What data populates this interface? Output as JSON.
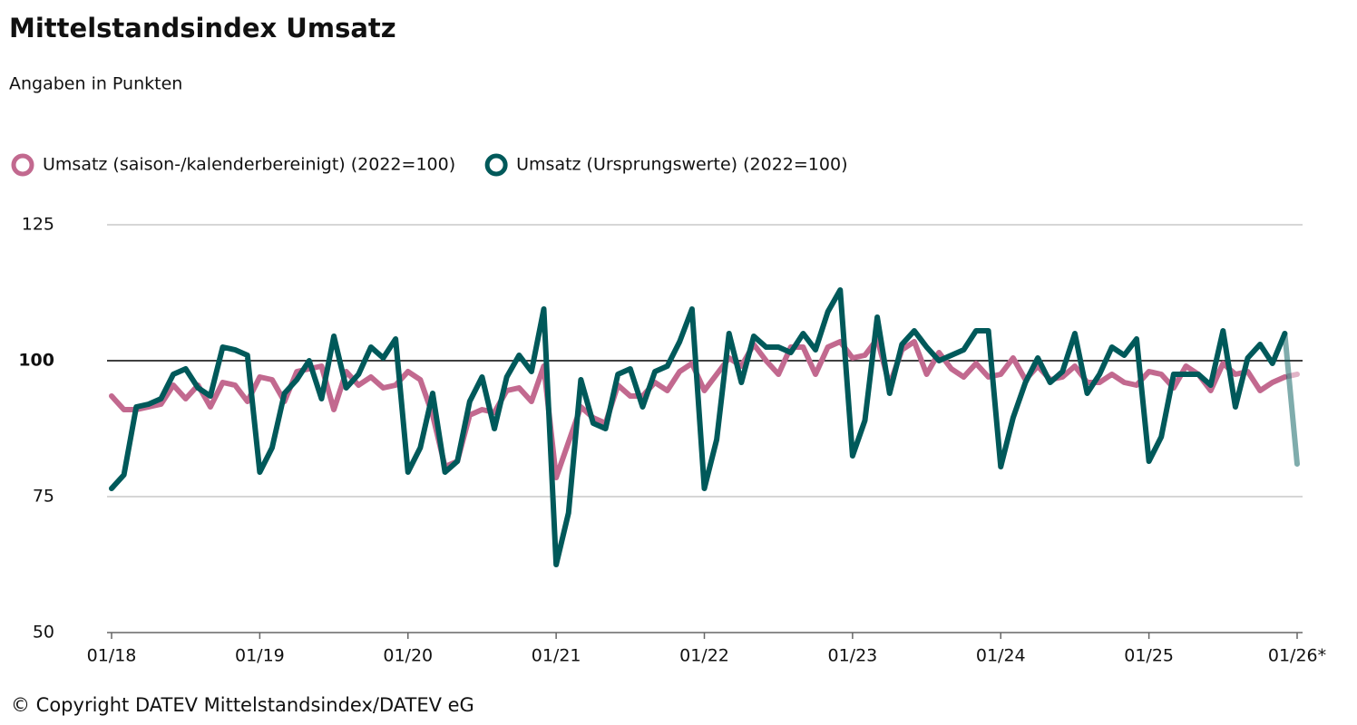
{
  "chart_data": {
    "type": "line",
    "title": "Mittelstandsindex Umsatz",
    "subtitle": "Angaben in Punkten",
    "source": "© Copyright DATEV Mittelstandsindex/DATEV eG",
    "x": [
      "01/18",
      null,
      null,
      null,
      null,
      null,
      null,
      null,
      null,
      null,
      null,
      null,
      "01/19",
      null,
      null,
      null,
      null,
      null,
      null,
      null,
      null,
      null,
      null,
      null,
      "01/20",
      null,
      null,
      null,
      null,
      null,
      null,
      null,
      null,
      null,
      null,
      null,
      "01/21",
      null,
      null,
      null,
      null,
      null,
      null,
      null,
      null,
      null,
      null,
      null,
      "01/22",
      null,
      null,
      null,
      null,
      null,
      null,
      null,
      null,
      null,
      null,
      null,
      "01/23",
      null,
      null,
      null,
      null,
      null,
      null,
      null,
      null,
      null,
      null,
      null,
      "01/24",
      null,
      null,
      null,
      null,
      null,
      null,
      null,
      null,
      null,
      null,
      null,
      "01/25",
      null,
      null,
      null,
      null,
      null,
      null,
      null,
      null,
      null,
      null,
      null,
      "01/26*"
    ],
    "series": [
      {
        "name": "Umsatz (saison-/kalenderbereinigt) (2022=100)",
        "color": "#c2698f",
        "values": [
          93.5,
          91,
          91,
          91.5,
          92,
          95.5,
          93,
          95.5,
          91.5,
          96,
          95.5,
          92.5,
          97,
          96.5,
          92.5,
          98,
          98.5,
          99,
          91,
          98,
          95.5,
          97,
          95,
          95.5,
          98,
          96.5,
          90,
          80.5,
          81.5,
          90,
          91,
          90.5,
          94.5,
          95,
          92.5,
          99,
          78.5,
          85,
          91.5,
          89.5,
          88.5,
          95.5,
          93.5,
          93.5,
          96,
          94.5,
          98,
          99.5,
          94.5,
          97.5,
          100.5,
          99,
          103,
          100,
          97.5,
          102.5,
          102.5,
          97.5,
          102.5,
          103.5,
          100.5,
          101,
          104,
          95.5,
          102,
          103.5,
          97.5,
          101.5,
          98.5,
          97,
          99.5,
          97,
          97.5,
          100.5,
          96.5,
          99,
          96.5,
          97,
          99,
          96,
          96,
          97.5,
          96,
          95.5,
          98,
          97.5,
          95,
          99,
          97.5,
          94.5,
          99.5,
          97.5,
          98,
          94.5,
          96,
          97,
          97.5
        ]
      },
      {
        "name": "Umsatz (Ursprungswerte) (2022=100)",
        "color": "#00595a",
        "values": [
          76.5,
          79,
          91.5,
          92,
          93,
          97.5,
          98.5,
          95,
          93.5,
          102.5,
          102,
          101,
          79.5,
          84,
          94,
          96.5,
          100,
          93,
          104.5,
          95,
          97.5,
          102.5,
          100.5,
          104,
          79.5,
          84,
          94,
          79.5,
          81.5,
          92.5,
          97,
          87.5,
          97,
          101,
          98,
          109.5,
          62.5,
          72,
          96.5,
          88.5,
          87.5,
          97.5,
          98.5,
          91.5,
          98,
          99,
          103.5,
          109.5,
          76.5,
          85.5,
          105,
          96,
          104.5,
          102.5,
          102.5,
          101.5,
          105,
          102,
          109,
          113,
          82.5,
          89,
          108,
          94,
          103,
          105.5,
          102.5,
          100,
          101,
          102,
          105.5,
          105.5,
          80.5,
          89.5,
          96,
          100.5,
          96,
          98,
          105,
          94,
          97.5,
          102.5,
          101,
          104,
          81.5,
          86,
          97.5,
          97.5,
          97.5,
          95.5,
          105.5,
          91.5,
          100.5,
          103,
          99.5,
          105,
          81
        ]
      }
    ],
    "ylim": [
      50,
      125
    ],
    "yticks": [
      50,
      75,
      100,
      125
    ],
    "grid": true,
    "reference_line": 100,
    "legend": "top-left"
  }
}
